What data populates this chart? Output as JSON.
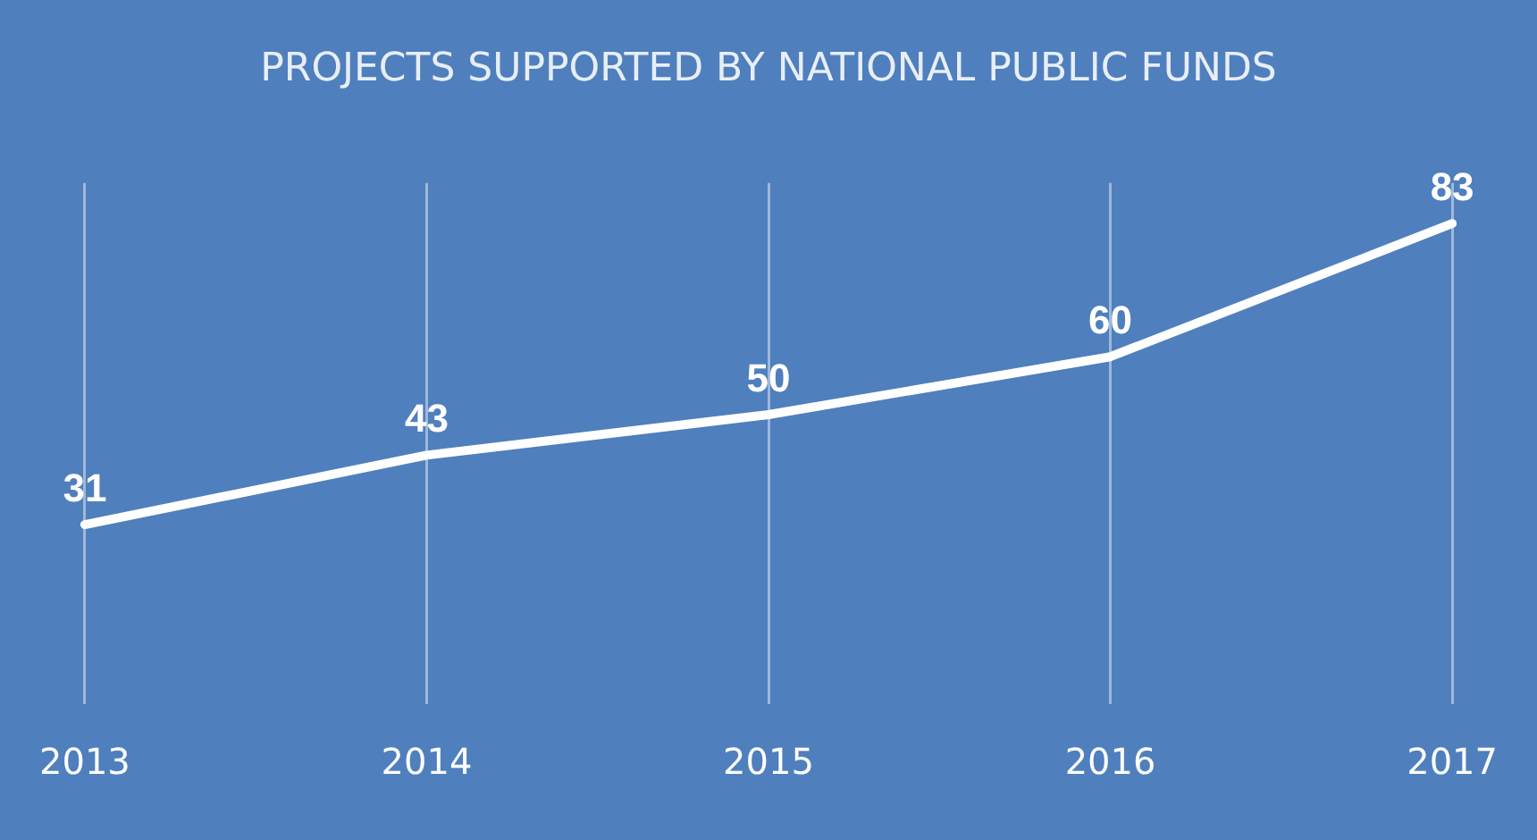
{
  "chart_data": {
    "type": "line",
    "title": "PROJECTS SUPPORTED BY NATIONAL PUBLIC FUNDS",
    "categories": [
      "2013",
      "2014",
      "2015",
      "2016",
      "2017"
    ],
    "values": [
      31,
      43,
      50,
      60,
      83
    ],
    "color": "#ffffff",
    "data_labels": true,
    "grid": "x",
    "legend": false,
    "marker": "none",
    "line_style": "solid",
    "tick_labels": "x"
  }
}
